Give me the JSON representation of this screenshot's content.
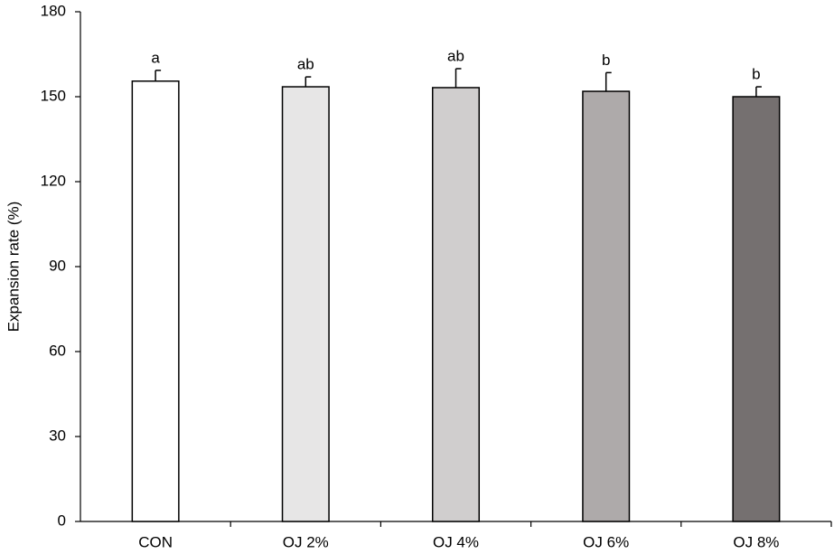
{
  "chart_data": {
    "type": "bar",
    "y_label": "Expansion rate (%)",
    "categories": [
      "CON",
      "OJ 2%",
      "OJ 4%",
      "OJ 6%",
      "OJ 8%"
    ],
    "values": [
      155.5,
      153.5,
      153.2,
      151.9,
      150.0
    ],
    "errors": [
      3.8,
      3.5,
      6.7,
      6.6,
      3.5
    ],
    "annotations": [
      "a",
      "ab",
      "ab",
      "b",
      "b"
    ],
    "colors": [
      "#ffffff",
      "#e7e6e6",
      "#d0cece",
      "#aeaaaa",
      "#757070"
    ],
    "ylim": [
      0,
      180
    ],
    "yticks": [
      0,
      30,
      60,
      90,
      120,
      150,
      180
    ],
    "grid": false
  }
}
